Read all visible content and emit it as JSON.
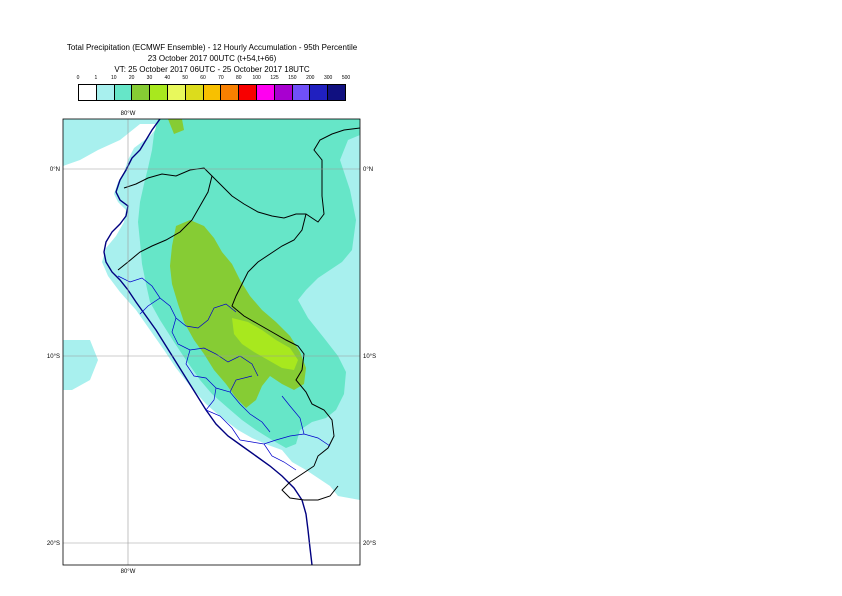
{
  "title": {
    "line1": "Total Precipitation (ECMWF Ensemble) - 12 Hourly Accumulation - 95th Percentile",
    "line2": "23 October 2017 00UTC (t+54,t+66)",
    "line3": "VT: 25 October 2017 06UTC - 25 October 2017 18UTC"
  },
  "legend": {
    "labels": [
      "0",
      "1",
      "10",
      "20",
      "30",
      "40",
      "50",
      "60",
      "70",
      "80",
      "100",
      "125",
      "150",
      "200",
      "300",
      "500"
    ],
    "colors": [
      "#ffffff",
      "#a8f0ee",
      "#66e6c8",
      "#86cc34",
      "#a8e81e",
      "#e8f85c",
      "#dcdc1c",
      "#f8c000",
      "#f88000",
      "#f80000",
      "#ff00f0",
      "#a800d0",
      "#7050f8",
      "#2020c0",
      "#101080"
    ]
  },
  "map": {
    "lon_label_top": "80°W",
    "lon_label_bottom": "80°W",
    "lat_labels": [
      {
        "left": "0°N",
        "right": "0°N"
      },
      {
        "left": "10°S",
        "right": "10°S"
      },
      {
        "left": "20°S",
        "right": "20°S"
      }
    ],
    "colors": {
      "light": "#a8f0ee",
      "medium": "#66e6c8",
      "green": "#86cc34",
      "lime": "#a8e81e",
      "coast": "#000080",
      "country_border": "#000000",
      "region_border": "#0000cc",
      "graticule": "#9a9a9a"
    }
  }
}
